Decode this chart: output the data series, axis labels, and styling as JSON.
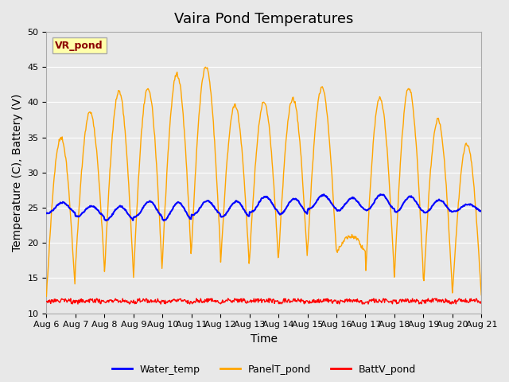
{
  "title": "Vaira Pond Temperatures",
  "xlabel": "Time",
  "ylabel": "Temperature (C), Battery (V)",
  "ylim": [
    10,
    50
  ],
  "site_label": "VR_pond",
  "x_tick_labels": [
    "Aug 6",
    "Aug 7",
    "Aug 8",
    "Aug 9",
    "Aug 10",
    "Aug 11",
    "Aug 12",
    "Aug 13",
    "Aug 14",
    "Aug 15",
    "Aug 16",
    "Aug 17",
    "Aug 18",
    "Aug 19",
    "Aug 20",
    "Aug 21"
  ],
  "legend_labels": [
    "Water_temp",
    "PanelT_pond",
    "BattV_pond"
  ],
  "legend_colors": [
    "blue",
    "orange",
    "red"
  ],
  "title_fontsize": 13,
  "axis_label_fontsize": 10,
  "tick_fontsize": 8,
  "bg_color": "#e8e8e8",
  "plot_bg": "#e8e8e8",
  "panel_peaks": [
    14,
    35,
    16.5,
    38.5,
    15.5,
    41.5,
    15,
    42,
    15.5,
    44,
    17.5,
    45,
    19,
    39.5,
    16.5,
    40,
    17.5,
    40.5,
    17.5,
    42,
    18.5,
    21,
    18.5,
    40.5,
    15,
    42,
    15,
    37.5,
    13,
    35.5,
    12.5,
    34,
    16
  ],
  "water_peaks": [
    25,
    25.5,
    24.2,
    25.5,
    24,
    26,
    24,
    26.2,
    24,
    26.5,
    24.5,
    27,
    24.5,
    26.5,
    24.5,
    27,
    24.8,
    27,
    24.5,
    26.8,
    25,
    26.5,
    24.8,
    26.8,
    24.5,
    26.8,
    24.5,
    26.8,
    23.5,
    26.5,
    24.5,
    25.5,
    25
  ],
  "batt_base": 11.8,
  "batt_noise": 0.3
}
